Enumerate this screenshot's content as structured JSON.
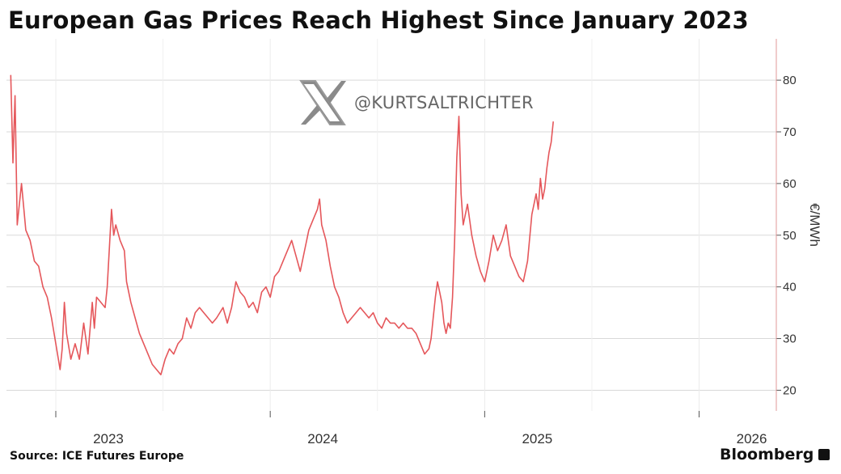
{
  "title": "European Gas Prices Reach Highest Since January 2023",
  "source": "Source: ICE Futures Europe",
  "brand": "Bloomberg",
  "watermark": {
    "icon": "x-logo-icon",
    "text": "@KURTSALTRICHTER"
  },
  "colors": {
    "line": "#e0393e",
    "grid": "#d9d9d9",
    "axis": "#555555"
  },
  "chart_data": {
    "type": "line",
    "title": "European Gas Prices Reach Highest Since January 2023",
    "ylabel": "€/MWh",
    "xlabel": "",
    "ylim": [
      16,
      88
    ],
    "xlim": [
      2022.77,
      2026.36
    ],
    "y_ticks": [
      20,
      30,
      40,
      50,
      60,
      70,
      80
    ],
    "x_ticks": [
      {
        "label": "2023",
        "value": 2023.0
      },
      {
        "label": "2024",
        "value": 2024.0
      },
      {
        "label": "2025",
        "value": 2025.0
      },
      {
        "label": "2026",
        "value": 2026.0
      }
    ],
    "grid": true,
    "y_axis_side": "right",
    "series": [
      {
        "color": "#e0393e",
        "points": [
          [
            2022.79,
            81
          ],
          [
            2022.8,
            64
          ],
          [
            2022.81,
            77
          ],
          [
            2022.82,
            52
          ],
          [
            2022.84,
            60
          ],
          [
            2022.86,
            51
          ],
          [
            2022.88,
            49
          ],
          [
            2022.9,
            45
          ],
          [
            2022.92,
            44
          ],
          [
            2022.94,
            40
          ],
          [
            2022.96,
            38
          ],
          [
            2022.98,
            34
          ],
          [
            2023.0,
            29
          ],
          [
            2023.02,
            24
          ],
          [
            2023.03,
            28
          ],
          [
            2023.04,
            37
          ],
          [
            2023.05,
            31
          ],
          [
            2023.07,
            26
          ],
          [
            2023.09,
            29
          ],
          [
            2023.11,
            26
          ],
          [
            2023.13,
            33
          ],
          [
            2023.15,
            27
          ],
          [
            2023.17,
            37
          ],
          [
            2023.18,
            32
          ],
          [
            2023.19,
            38
          ],
          [
            2023.21,
            37
          ],
          [
            2023.23,
            36
          ],
          [
            2023.24,
            40
          ],
          [
            2023.26,
            55
          ],
          [
            2023.27,
            50
          ],
          [
            2023.28,
            52
          ],
          [
            2023.3,
            49
          ],
          [
            2023.32,
            47
          ],
          [
            2023.33,
            41
          ],
          [
            2023.35,
            37
          ],
          [
            2023.37,
            34
          ],
          [
            2023.39,
            31
          ],
          [
            2023.41,
            29
          ],
          [
            2023.43,
            27
          ],
          [
            2023.45,
            25
          ],
          [
            2023.47,
            24
          ],
          [
            2023.49,
            23
          ],
          [
            2023.51,
            26
          ],
          [
            2023.53,
            28
          ],
          [
            2023.55,
            27
          ],
          [
            2023.57,
            29
          ],
          [
            2023.59,
            30
          ],
          [
            2023.61,
            34
          ],
          [
            2023.63,
            32
          ],
          [
            2023.65,
            35
          ],
          [
            2023.67,
            36
          ],
          [
            2023.69,
            35
          ],
          [
            2023.71,
            34
          ],
          [
            2023.73,
            33
          ],
          [
            2023.75,
            34
          ],
          [
            2023.78,
            36
          ],
          [
            2023.8,
            33
          ],
          [
            2023.82,
            36
          ],
          [
            2023.84,
            41
          ],
          [
            2023.86,
            39
          ],
          [
            2023.88,
            38
          ],
          [
            2023.9,
            36
          ],
          [
            2023.92,
            37
          ],
          [
            2023.94,
            35
          ],
          [
            2023.96,
            39
          ],
          [
            2023.98,
            40
          ],
          [
            2024.0,
            38
          ],
          [
            2024.02,
            42
          ],
          [
            2024.04,
            43
          ],
          [
            2024.06,
            45
          ],
          [
            2024.08,
            47
          ],
          [
            2024.1,
            49
          ],
          [
            2024.12,
            46
          ],
          [
            2024.14,
            43
          ],
          [
            2024.16,
            47
          ],
          [
            2024.18,
            51
          ],
          [
            2024.2,
            53
          ],
          [
            2024.22,
            55
          ],
          [
            2024.23,
            57
          ],
          [
            2024.24,
            52
          ],
          [
            2024.26,
            49
          ],
          [
            2024.28,
            44
          ],
          [
            2024.3,
            40
          ],
          [
            2024.32,
            38
          ],
          [
            2024.34,
            35
          ],
          [
            2024.36,
            33
          ],
          [
            2024.38,
            34
          ],
          [
            2024.4,
            35
          ],
          [
            2024.42,
            36
          ],
          [
            2024.44,
            35
          ],
          [
            2024.46,
            34
          ],
          [
            2024.48,
            35
          ],
          [
            2024.5,
            33
          ],
          [
            2024.52,
            32
          ],
          [
            2024.54,
            34
          ],
          [
            2024.56,
            33
          ],
          [
            2024.58,
            33
          ],
          [
            2024.6,
            32
          ],
          [
            2024.62,
            33
          ],
          [
            2024.64,
            32
          ],
          [
            2024.66,
            32
          ],
          [
            2024.68,
            31
          ],
          [
            2024.7,
            29
          ],
          [
            2024.72,
            27
          ],
          [
            2024.74,
            28
          ],
          [
            2024.75,
            30
          ],
          [
            2024.76,
            34
          ],
          [
            2024.77,
            38
          ],
          [
            2024.78,
            41
          ],
          [
            2024.79,
            39
          ],
          [
            2024.8,
            37
          ],
          [
            2024.81,
            33
          ],
          [
            2024.82,
            31
          ],
          [
            2024.83,
            33
          ],
          [
            2024.84,
            32
          ],
          [
            2024.85,
            38
          ],
          [
            2024.86,
            49
          ],
          [
            2024.87,
            65
          ],
          [
            2024.88,
            73
          ],
          [
            2024.89,
            58
          ],
          [
            2024.9,
            52
          ],
          [
            2024.92,
            56
          ],
          [
            2024.94,
            50
          ],
          [
            2024.96,
            46
          ],
          [
            2024.98,
            43
          ],
          [
            2025.0,
            41
          ],
          [
            2025.02,
            45
          ],
          [
            2025.04,
            50
          ],
          [
            2025.06,
            47
          ],
          [
            2025.08,
            49
          ],
          [
            2025.1,
            52
          ],
          [
            2025.12,
            46
          ],
          [
            2025.14,
            44
          ],
          [
            2025.16,
            42
          ],
          [
            2025.18,
            41
          ],
          [
            2025.2,
            45
          ],
          [
            2025.22,
            54
          ],
          [
            2025.24,
            58
          ],
          [
            2025.25,
            55
          ],
          [
            2025.26,
            61
          ],
          [
            2025.27,
            57
          ],
          [
            2025.28,
            59
          ],
          [
            2025.29,
            63
          ],
          [
            2025.3,
            66
          ],
          [
            2025.31,
            68
          ],
          [
            2025.32,
            72
          ]
        ]
      }
    ]
  }
}
